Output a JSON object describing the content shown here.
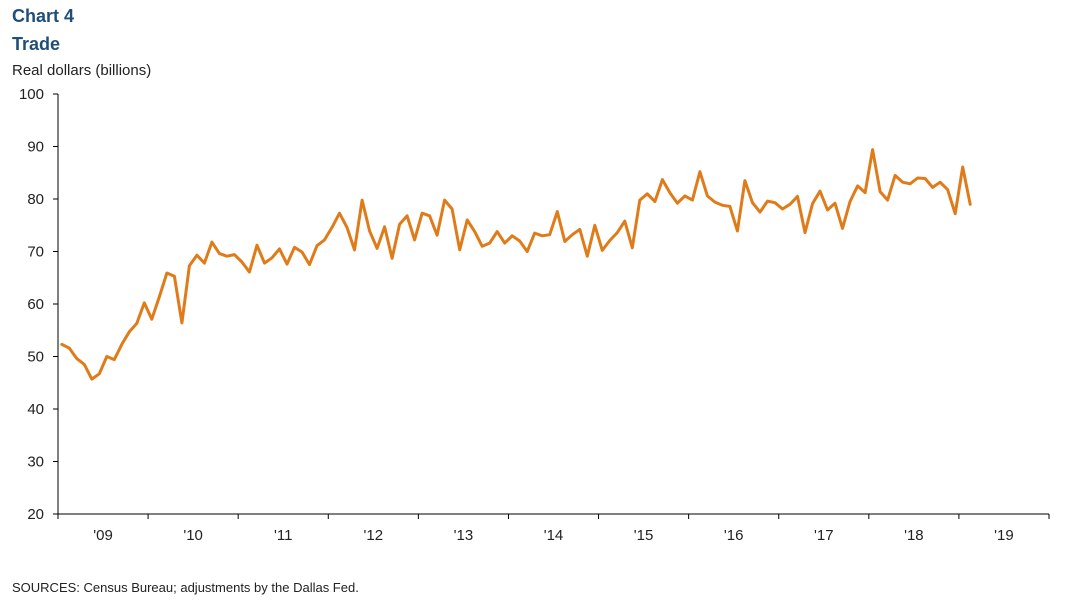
{
  "header": {
    "chart_number": "Chart 4",
    "title": "Trade",
    "unit_label": "Real dollars  (billions)"
  },
  "footer": {
    "source": "SOURCES:  Census Bureau; adjustments by the Dallas Fed."
  },
  "colors": {
    "line": "#e07b1a",
    "axis": "#000000",
    "title": "#1f4e79"
  },
  "chart_data": {
    "type": "line",
    "title": "Trade",
    "ylabel": "Real dollars  (billions)",
    "xlabel": "",
    "ylim": [
      20,
      100
    ],
    "yticks": [
      20,
      30,
      40,
      50,
      60,
      70,
      80,
      90,
      100
    ],
    "grid": false,
    "legend": "none",
    "x_start": "2009-01",
    "frequency": "monthly",
    "xlim_months": [
      0,
      132
    ],
    "x_tick_labels": [
      {
        "label": "'09",
        "month_index": 6
      },
      {
        "label": "'10",
        "month_index": 18
      },
      {
        "label": "'11",
        "month_index": 30
      },
      {
        "label": "'12",
        "month_index": 42
      },
      {
        "label": "'13",
        "month_index": 54
      },
      {
        "label": "'14",
        "month_index": 66
      },
      {
        "label": "'15",
        "month_index": 78
      },
      {
        "label": "'16",
        "month_index": 90
      },
      {
        "label": "'17",
        "month_index": 102
      },
      {
        "label": "'18",
        "month_index": 114
      },
      {
        "label": "'19",
        "month_index": 126
      }
    ],
    "series": [
      {
        "values": [
          52.3,
          51.6,
          49.6,
          48.5,
          45.7,
          46.7,
          50.0,
          49.4,
          52.3,
          54.7,
          56.3,
          60.2,
          57.1,
          61.4,
          65.9,
          65.3,
          56.4,
          67.3,
          69.3,
          67.8,
          71.8,
          69.6,
          69.1,
          69.4,
          68.0,
          66.1,
          71.2,
          67.8,
          68.8,
          70.5,
          67.6,
          70.8,
          69.9,
          67.5,
          71.1,
          72.2,
          74.6,
          77.3,
          74.6,
          70.3,
          79.8,
          73.9,
          70.6,
          74.7,
          68.7,
          75.2,
          76.8,
          72.2,
          77.3,
          76.8,
          73.1,
          79.8,
          78.1,
          70.3,
          76.0,
          73.8,
          71.0,
          71.6,
          73.8,
          71.6,
          73.0,
          72.0,
          70.0,
          73.5,
          73.0,
          73.2,
          77.6,
          71.9,
          73.2,
          74.2,
          69.1,
          75.0,
          70.2,
          72.1,
          73.6,
          75.8,
          70.7,
          79.8,
          81.0,
          79.5,
          83.7,
          81.2,
          79.2,
          80.6,
          79.8,
          85.2,
          80.6,
          79.4,
          78.8,
          78.6,
          73.9,
          83.5,
          79.3,
          77.5,
          79.6,
          79.3,
          78.1,
          79.0,
          80.5,
          73.6,
          79.1,
          81.5,
          77.9,
          79.2,
          74.4,
          79.5,
          82.5,
          81.2,
          89.4,
          81.4,
          79.8,
          84.5,
          83.2,
          82.9,
          84.0,
          83.9,
          82.2,
          83.2,
          81.8,
          77.2,
          86.1,
          79.0
        ]
      }
    ]
  }
}
